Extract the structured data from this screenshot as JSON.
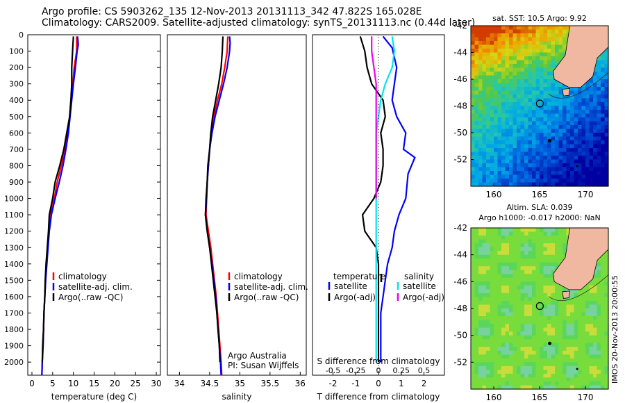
{
  "header": {
    "line1": "Argo profile: CS 5903262_135 12-Nov-2013 20131113_342 47.822S 165.028E",
    "line2": "Climatology: CARS2009. Satellite-adjusted climatology: synTS_20131113.nc (0.44d later)"
  },
  "colors": {
    "clim": "#ff0000",
    "sat": "#0000ff",
    "argo": "#000000",
    "s_sat": "#00e5ee",
    "s_argo": "#ee00ee",
    "land": "#f0b8a0"
  },
  "chart_data": [
    {
      "type": "line",
      "xlabel": "temperature (deg C)",
      "ylabel": "",
      "xlim": [
        -1,
        31
      ],
      "ylim": [
        2080,
        0
      ],
      "y_reversed": true,
      "xticks": [
        0,
        5,
        10,
        15,
        20,
        25,
        30
      ],
      "yticks": [
        0,
        100,
        200,
        300,
        400,
        500,
        600,
        700,
        800,
        900,
        1000,
        1100,
        1200,
        1300,
        1400,
        1500,
        1600,
        1700,
        1800,
        1900,
        2000
      ],
      "legend": [
        "climatology",
        "satellite-adj. clim.",
        "Argo(..raw -QC)"
      ],
      "series": [
        {
          "name": "climatology",
          "color": "clim",
          "points": [
            [
              10.8,
              10
            ],
            [
              10.8,
              100
            ],
            [
              10.2,
              200
            ],
            [
              9.9,
              300
            ],
            [
              9.4,
              400
            ],
            [
              9.1,
              500
            ],
            [
              8.6,
              600
            ],
            [
              8,
              700
            ],
            [
              7.1,
              800
            ],
            [
              6.1,
              900
            ],
            [
              5.4,
              1000
            ],
            [
              4.5,
              1100
            ],
            [
              4.1,
              1200
            ],
            [
              3.8,
              1300
            ],
            [
              3.5,
              1400
            ],
            [
              3.3,
              1500
            ],
            [
              3.1,
              1600
            ],
            [
              2.9,
              1700
            ],
            [
              2.8,
              1800
            ],
            [
              2.6,
              1900
            ],
            [
              2.5,
              2000
            ],
            [
              2.4,
              2080
            ]
          ]
        },
        {
          "name": "satellite-adj. clim.",
          "color": "sat",
          "points": [
            [
              11,
              10
            ],
            [
              11.2,
              60
            ],
            [
              10.9,
              100
            ],
            [
              10.5,
              200
            ],
            [
              10,
              300
            ],
            [
              9.6,
              400
            ],
            [
              9.2,
              500
            ],
            [
              8.8,
              600
            ],
            [
              8.2,
              700
            ],
            [
              7.5,
              800
            ],
            [
              6.6,
              900
            ],
            [
              5.6,
              1000
            ],
            [
              4.7,
              1100
            ],
            [
              4.2,
              1200
            ],
            [
              3.9,
              1300
            ],
            [
              3.6,
              1400
            ],
            [
              3.3,
              1500
            ],
            [
              3.1,
              1600
            ],
            [
              2.9,
              1700
            ],
            [
              2.8,
              1800
            ],
            [
              2.7,
              1900
            ],
            [
              2.5,
              2000
            ],
            [
              2.4,
              2080
            ]
          ]
        },
        {
          "name": "Argo(..raw -QC)",
          "color": "argo",
          "points": [
            [
              10,
              10
            ],
            [
              9.8,
              100
            ],
            [
              9.6,
              200
            ],
            [
              9.6,
              300
            ],
            [
              9.4,
              400
            ],
            [
              9.1,
              500
            ],
            [
              8.4,
              600
            ],
            [
              7.7,
              700
            ],
            [
              6.7,
              800
            ],
            [
              5.6,
              900
            ],
            [
              5,
              1000
            ],
            [
              4.2,
              1100
            ],
            [
              4,
              1200
            ],
            [
              3.7,
              1300
            ],
            [
              3.4,
              1400
            ],
            [
              3.2,
              1500
            ],
            [
              3.1,
              1600
            ],
            [
              2.9,
              1700
            ],
            [
              2.8,
              1800
            ],
            [
              2.6,
              1900
            ],
            [
              2.5,
              2000
            ]
          ]
        }
      ]
    },
    {
      "type": "line",
      "xlabel": "salinity",
      "xlim": [
        33.8,
        36.1
      ],
      "ylim": [
        2080,
        0
      ],
      "y_reversed": true,
      "xticks": [
        34,
        34.5,
        35,
        35.5,
        36
      ],
      "legend": [
        "climatology",
        "satellite-adj. clim.",
        "Argo(..raw -QC)"
      ],
      "annotation": [
        "Argo Australia",
        "PI: Susan Wijffels"
      ],
      "series": [
        {
          "name": "climatology",
          "color": "clim",
          "points": [
            [
              34.8,
              10
            ],
            [
              34.79,
              100
            ],
            [
              34.75,
              200
            ],
            [
              34.7,
              300
            ],
            [
              34.63,
              400
            ],
            [
              34.57,
              500
            ],
            [
              34.52,
              600
            ],
            [
              34.5,
              700
            ],
            [
              34.48,
              800
            ],
            [
              34.46,
              900
            ],
            [
              34.45,
              1000
            ],
            [
              34.44,
              1100
            ],
            [
              34.48,
              1200
            ],
            [
              34.52,
              1300
            ],
            [
              34.55,
              1400
            ],
            [
              34.58,
              1500
            ],
            [
              34.61,
              1600
            ],
            [
              34.63,
              1700
            ],
            [
              34.65,
              1800
            ],
            [
              34.67,
              1900
            ],
            [
              34.69,
              2000
            ],
            [
              34.7,
              2080
            ]
          ]
        },
        {
          "name": "satellite-adj. clim.",
          "color": "sat",
          "points": [
            [
              34.83,
              10
            ],
            [
              34.84,
              50
            ],
            [
              34.83,
              100
            ],
            [
              34.79,
              200
            ],
            [
              34.73,
              300
            ],
            [
              34.66,
              400
            ],
            [
              34.59,
              500
            ],
            [
              34.54,
              600
            ],
            [
              34.5,
              700
            ],
            [
              34.48,
              800
            ],
            [
              34.46,
              900
            ],
            [
              34.45,
              1000
            ],
            [
              34.43,
              1100
            ],
            [
              34.46,
              1200
            ],
            [
              34.5,
              1300
            ],
            [
              34.54,
              1400
            ],
            [
              34.57,
              1500
            ],
            [
              34.6,
              1600
            ],
            [
              34.62,
              1700
            ],
            [
              34.64,
              1800
            ],
            [
              34.66,
              1900
            ],
            [
              34.68,
              2000
            ],
            [
              34.69,
              2080
            ]
          ]
        },
        {
          "name": "Argo(..raw -QC)",
          "color": "argo",
          "points": [
            [
              34.72,
              10
            ],
            [
              34.71,
              100
            ],
            [
              34.69,
              200
            ],
            [
              34.65,
              300
            ],
            [
              34.6,
              400
            ],
            [
              34.55,
              500
            ],
            [
              34.52,
              600
            ],
            [
              34.5,
              700
            ],
            [
              34.47,
              800
            ],
            [
              34.46,
              900
            ],
            [
              34.44,
              1000
            ],
            [
              34.43,
              1100
            ],
            [
              34.46,
              1200
            ],
            [
              34.5,
              1300
            ],
            [
              34.53,
              1400
            ],
            [
              34.56,
              1500
            ],
            [
              34.59,
              1600
            ],
            [
              34.62,
              1700
            ],
            [
              34.64,
              1800
            ],
            [
              34.66,
              1900
            ],
            [
              34.67,
              2000
            ]
          ]
        }
      ]
    },
    {
      "type": "line",
      "xlabel": "T difference from climatology",
      "title_top": "S difference from climatology",
      "xlim": [
        -2.9,
        2.9
      ],
      "ylim": [
        2080,
        0
      ],
      "y_reversed": true,
      "xticks": [
        -2,
        -1,
        0,
        1,
        2
      ],
      "top_ticks": [
        {
          "value": -0.5,
          "label": "-0.5"
        },
        {
          "value": -0.25,
          "label": "-0.25"
        },
        {
          "value": 0,
          "label": "0"
        },
        {
          "value": 0.25,
          "label": "0.25"
        },
        {
          "value": 0.5,
          "label": "0.5"
        }
      ],
      "s_scale": 4,
      "legend_headers": [
        "temperature",
        "salinity"
      ],
      "legend": [
        "satellite",
        "Argo(-adj)",
        "satellite",
        "Argo(-adj)"
      ],
      "series": [
        {
          "name": "satellite",
          "color": "sat",
          "points": [
            [
              0.2,
              10
            ],
            [
              0.6,
              80
            ],
            [
              0.8,
              200
            ],
            [
              0.7,
              300
            ],
            [
              0.6,
              400
            ],
            [
              0.8,
              500
            ],
            [
              1.2,
              600
            ],
            [
              1.1,
              700
            ],
            [
              1.6,
              750
            ],
            [
              1.3,
              850
            ],
            [
              1.2,
              1000
            ],
            [
              0.9,
              1100
            ],
            [
              0.7,
              1200
            ],
            [
              0.6,
              1300
            ],
            [
              0.4,
              1400
            ],
            [
              0.3,
              1500
            ],
            [
              0.2,
              1600
            ],
            [
              0.1,
              1700
            ],
            [
              0.1,
              1800
            ],
            [
              0.1,
              1900
            ],
            [
              0.1,
              2000
            ]
          ]
        },
        {
          "name": "Argo(-adj)",
          "color": "argo",
          "points": [
            [
              -0.8,
              10
            ],
            [
              -0.6,
              100
            ],
            [
              -0.5,
              200
            ],
            [
              -0.3,
              300
            ],
            [
              0.2,
              400
            ],
            [
              0.3,
              500
            ],
            [
              0.1,
              600
            ],
            [
              0.2,
              700
            ],
            [
              0.2,
              800
            ],
            [
              0.1,
              900
            ],
            [
              -0.2,
              1000
            ],
            [
              -0.7,
              1100
            ],
            [
              -0.6,
              1200
            ],
            [
              -0.1,
              1300
            ],
            [
              0,
              1400
            ],
            [
              0,
              1500
            ],
            [
              0,
              1600
            ],
            [
              0,
              1700
            ],
            [
              0,
              1800
            ],
            [
              0,
              1900
            ],
            [
              0,
              2000
            ]
          ]
        },
        {
          "name": "satellite",
          "color": "s_sat",
          "points": [
            [
              0.6,
              10
            ],
            [
              0.7,
              100
            ],
            [
              0.6,
              200
            ],
            [
              0.3,
              300
            ],
            [
              0.1,
              400
            ],
            [
              0,
              500
            ],
            [
              -0.1,
              600
            ],
            [
              -0.1,
              700
            ],
            [
              -0.1,
              800
            ],
            [
              -0.1,
              900
            ],
            [
              -0.1,
              1000
            ],
            [
              -0.1,
              1100
            ],
            [
              -0.1,
              1200
            ],
            [
              -0.1,
              1300
            ],
            [
              -0.1,
              1400
            ],
            [
              -0.1,
              1500
            ],
            [
              -0.1,
              1600
            ],
            [
              -0.1,
              1700
            ],
            [
              -0.1,
              1800
            ],
            [
              -0.1,
              1900
            ],
            [
              -0.1,
              2000
            ]
          ]
        },
        {
          "name": "Argo(-adj)",
          "color": "s_argo",
          "points": [
            [
              -0.3,
              10
            ],
            [
              -0.3,
              100
            ],
            [
              -0.2,
              200
            ],
            [
              -0.1,
              300
            ],
            [
              -0.1,
              400
            ],
            [
              -0.1,
              500
            ],
            [
              -0.1,
              600
            ],
            [
              -0.1,
              700
            ],
            [
              -0.1,
              800
            ],
            [
              -0.1,
              900
            ],
            [
              -0.1,
              1000
            ]
          ]
        }
      ]
    },
    {
      "type": "heatmap",
      "title": "sat. SST: 10.5 Argo: 9.92",
      "xlim": [
        157.5,
        172.5
      ],
      "ylim": [
        -54,
        -42
      ],
      "xticks": [
        160,
        165,
        170
      ],
      "yticks": [
        -42,
        -44,
        -46,
        -48,
        -50,
        -52
      ],
      "marker": [
        165.03,
        -47.82
      ]
    },
    {
      "type": "heatmap",
      "title": "Altim. SLA: 0.039",
      "subtitle": "Argo h1000: -0.017 h2000: NaN",
      "xlim": [
        157.5,
        172.5
      ],
      "ylim": [
        -54,
        -42
      ],
      "xticks": [
        160,
        165,
        170
      ],
      "yticks": [
        -42,
        -44,
        -46,
        -48,
        -50,
        -52
      ],
      "marker": [
        165.03,
        -47.82
      ]
    }
  ],
  "footer": {
    "stamp": "IMOS 20-Nov-2013 20:00:55"
  }
}
